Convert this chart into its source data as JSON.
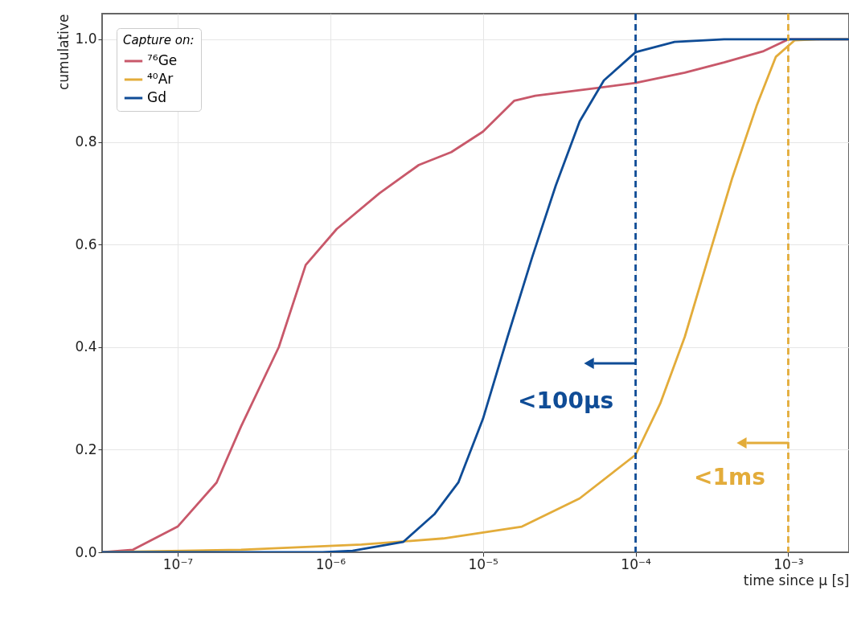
{
  "chart_data": {
    "type": "line",
    "xlabel": "time since μ [s]",
    "ylabel": "cumulative",
    "legend_title": "Capture on:",
    "log": "x",
    "grid": true,
    "legend": "top left",
    "line_style": "solid",
    "marker": "none",
    "xlim": [
      3.2e-08,
      0.0025
    ],
    "xticks": [
      {
        "value": 1e-07,
        "label": "10⁻⁷"
      },
      {
        "value": 1e-06,
        "label": "10⁻⁶"
      },
      {
        "value": 1e-05,
        "label": "10⁻⁵"
      },
      {
        "value": 0.0001,
        "label": "10⁻⁴"
      },
      {
        "value": 0.001,
        "label": "10⁻³"
      }
    ],
    "ylim": [
      0,
      1.05
    ],
    "yticks": [
      {
        "value": 0,
        "label": "0.0"
      },
      0.2,
      0.4,
      0.6,
      0.8,
      {
        "value": 1,
        "label": "1.0"
      }
    ],
    "series": [
      {
        "name": "⁷⁶Ge",
        "color": "#c8586a",
        "x": [
          3.2e-08,
          5.1e-08,
          1e-07,
          1.8e-07,
          2.6e-07,
          4.6e-07,
          6.9e-07,
          1.1e-06,
          2.1e-06,
          3.8e-06,
          6.2e-06,
          1e-05,
          1.6e-05,
          2.2e-05,
          5.5e-05,
          0.0001,
          0.00021,
          0.00038,
          0.00069,
          0.001,
          0.0025
        ],
        "values": [
          0,
          0.005,
          0.05,
          0.136,
          0.245,
          0.4,
          0.56,
          0.63,
          0.7,
          0.755,
          0.78,
          0.82,
          0.88,
          0.89,
          0.905,
          0.915,
          0.935,
          0.955,
          0.977,
          1.0,
          1.0
        ]
      },
      {
        "name": "⁴⁰Ar",
        "color": "#e3ac3a",
        "x": [
          3.2e-08,
          2.6e-07,
          1.6e-06,
          5.5e-06,
          1.8e-05,
          4.3e-05,
          0.0001,
          0.000145,
          0.00021,
          0.0003,
          0.00043,
          0.00062,
          0.00083,
          0.0011,
          0.0016,
          0.0025
        ],
        "values": [
          0,
          0.005,
          0.015,
          0.027,
          0.05,
          0.105,
          0.19,
          0.29,
          0.42,
          0.575,
          0.73,
          0.87,
          0.966,
          0.998,
          1.0,
          1.0
        ]
      },
      {
        "name": "Gd",
        "color": "#0f4c96",
        "x": [
          3.2e-08,
          8.9e-07,
          1.4e-06,
          3e-06,
          4.8e-06,
          6.9e-06,
          1e-05,
          1.45e-05,
          2.1e-05,
          3e-05,
          4.3e-05,
          6.2e-05,
          0.0001,
          0.00018,
          0.00038,
          0.0025
        ],
        "values": [
          0,
          0,
          0.003,
          0.02,
          0.074,
          0.136,
          0.26,
          0.42,
          0.575,
          0.715,
          0.84,
          0.92,
          0.975,
          0.995,
          1.0,
          1.0
        ]
      }
    ],
    "ref_lines": [
      {
        "axis": "x",
        "value": 0.0001,
        "color": "#0f4c96",
        "line_style": "dashed"
      },
      {
        "axis": "x",
        "value": 0.001,
        "color": "#e3ac3a",
        "line_style": "dashed"
      }
    ],
    "annotations": [
      "<100μs",
      "<1ms"
    ]
  }
}
